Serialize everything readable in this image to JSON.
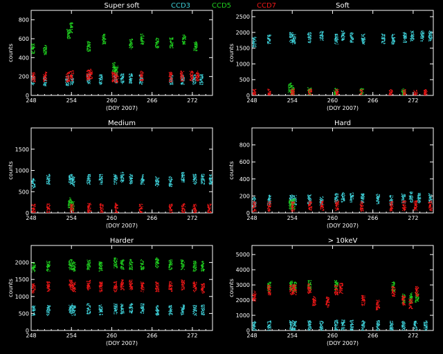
{
  "legend": [
    {
      "label": "CCD3",
      "color": "#3fd0d8"
    },
    {
      "label": "CCD5",
      "color": "#20d020"
    },
    {
      "label": "CCD7",
      "color": "#f01818"
    }
  ],
  "chart_data": [
    {
      "type": "scatter",
      "title": "Super soft",
      "xlabel": "(DOY 2007)",
      "ylabel": "counts",
      "xlim": [
        248,
        275
      ],
      "ylim": [
        0,
        900
      ],
      "xticks": [
        248,
        254,
        260,
        266,
        272
      ],
      "yticks": [
        0,
        200,
        400,
        600,
        800
      ],
      "series": [
        {
          "ccd": "CCD3",
          "values": [
            [
              248.2,
              170
            ],
            [
              250,
              160
            ],
            [
              253.3,
              160
            ],
            [
              254,
              170
            ],
            [
              256.5,
              180
            ],
            [
              258.3,
              170
            ],
            [
              260.5,
              190
            ],
            [
              261.5,
              180
            ],
            [
              262.8,
              180
            ],
            [
              264.3,
              170
            ],
            [
              268.8,
              170
            ],
            [
              270.5,
              170
            ],
            [
              272.2,
              170
            ],
            [
              273.3,
              170
            ]
          ]
        },
        {
          "ccd": "CCD5",
          "values": [
            [
              248.2,
              500
            ],
            [
              250,
              480
            ],
            [
              253.5,
              650
            ],
            [
              253.9,
              720
            ],
            [
              256.5,
              520
            ],
            [
              258.8,
              600
            ],
            [
              260.3,
              300
            ],
            [
              260.6,
              270
            ],
            [
              262.8,
              550
            ],
            [
              264.5,
              600
            ],
            [
              266.7,
              560
            ],
            [
              268.8,
              560
            ],
            [
              270.7,
              600
            ],
            [
              272.4,
              520
            ]
          ]
        },
        {
          "ccd": "CCD7",
          "values": [
            [
              248.3,
              200
            ],
            [
              250,
              200
            ],
            [
              253.4,
              200
            ],
            [
              254,
              210
            ],
            [
              256.4,
              220
            ],
            [
              256.8,
              230
            ],
            [
              260.2,
              200
            ],
            [
              260.7,
              190
            ],
            [
              264.4,
              210
            ],
            [
              268.7,
              200
            ],
            [
              270.4,
              210
            ],
            [
              271.8,
              210
            ],
            [
              272.7,
              210
            ]
          ]
        }
      ]
    },
    {
      "type": "scatter",
      "title": "Soft",
      "xlabel": "(DOY 2007)",
      "ylabel": "counts",
      "xlim": [
        248,
        275
      ],
      "ylim": [
        0,
        2700
      ],
      "xticks": [
        248,
        254,
        260,
        266,
        272
      ],
      "yticks": [
        0,
        500,
        1000,
        1500,
        2000,
        2500
      ],
      "series": [
        {
          "ccd": "CCD3",
          "values": [
            [
              248.3,
              1700
            ],
            [
              250.5,
              1800
            ],
            [
              253.8,
              1850
            ],
            [
              254.2,
              1800
            ],
            [
              256.5,
              1850
            ],
            [
              258.3,
              1900
            ],
            [
              260.5,
              1800
            ],
            [
              261.5,
              1900
            ],
            [
              262.8,
              1850
            ],
            [
              264.5,
              1800
            ],
            [
              267.5,
              1800
            ],
            [
              269,
              1800
            ],
            [
              270.7,
              1850
            ],
            [
              271.8,
              1900
            ],
            [
              273.3,
              1900
            ],
            [
              274.5,
              1900
            ]
          ]
        },
        {
          "ccd": "CCD5",
          "values": [
            [
              253.6,
              250
            ],
            [
              254,
              180
            ],
            [
              256.5,
              100
            ],
            [
              260.4,
              80
            ],
            [
              264.3,
              80
            ],
            [
              270.5,
              70
            ]
          ]
        },
        {
          "ccd": "CCD7",
          "values": [
            [
              248.3,
              60
            ],
            [
              250.5,
              50
            ],
            [
              254,
              70
            ],
            [
              256.6,
              50
            ],
            [
              260.6,
              40
            ],
            [
              264.2,
              40
            ],
            [
              268.6,
              40
            ],
            [
              270.6,
              40
            ],
            [
              272.3,
              40
            ],
            [
              273.8,
              40
            ]
          ]
        }
      ]
    },
    {
      "type": "scatter",
      "title": "Medium",
      "xlabel": "(DOY 2007)",
      "ylabel": "counts",
      "xlim": [
        248,
        275
      ],
      "ylim": [
        0,
        2000
      ],
      "xticks": [
        248,
        254,
        260,
        266,
        272
      ],
      "yticks": [
        0,
        500,
        1000,
        1500
      ],
      "series": [
        {
          "ccd": "CCD3",
          "values": [
            [
              248.3,
              700
            ],
            [
              250.5,
              800
            ],
            [
              253.8,
              800
            ],
            [
              254.2,
              750
            ],
            [
              256.5,
              800
            ],
            [
              258.3,
              800
            ],
            [
              260.5,
              800
            ],
            [
              261.5,
              850
            ],
            [
              262.8,
              800
            ],
            [
              264.5,
              800
            ],
            [
              266.7,
              750
            ],
            [
              268.7,
              750
            ],
            [
              270.5,
              850
            ],
            [
              272.3,
              800
            ],
            [
              273.5,
              800
            ],
            [
              274.7,
              800
            ]
          ]
        },
        {
          "ccd": "CCD5",
          "values": [
            [
              253.7,
              250
            ],
            [
              254.1,
              180
            ]
          ]
        },
        {
          "ccd": "CCD7",
          "values": [
            [
              248.3,
              100
            ],
            [
              250.5,
              100
            ],
            [
              254,
              100
            ],
            [
              256.6,
              120
            ],
            [
              258.4,
              110
            ],
            [
              260.6,
              120
            ],
            [
              264.3,
              100
            ],
            [
              268.7,
              100
            ],
            [
              270.6,
              110
            ],
            [
              272.3,
              100
            ],
            [
              274.5,
              100
            ]
          ]
        }
      ]
    },
    {
      "type": "scatter",
      "title": "Hard",
      "xlabel": "(DOY 2007)",
      "ylabel": "counts",
      "xlim": [
        248,
        275
      ],
      "ylim": [
        0,
        1000
      ],
      "xticks": [
        248,
        254,
        260,
        266,
        272
      ],
      "yticks": [
        0,
        200,
        400,
        600,
        800
      ],
      "series": [
        {
          "ccd": "CCD3",
          "values": [
            [
              248.3,
              130
            ],
            [
              250.5,
              160
            ],
            [
              253.8,
              160
            ],
            [
              254.3,
              150
            ],
            [
              256.5,
              160
            ],
            [
              258.3,
              150
            ],
            [
              260.5,
              180
            ],
            [
              261.5,
              190
            ],
            [
              262.8,
              190
            ],
            [
              264.4,
              170
            ],
            [
              266.7,
              170
            ],
            [
              268.7,
              150
            ],
            [
              270.5,
              180
            ],
            [
              271.6,
              190
            ],
            [
              272.8,
              180
            ],
            [
              274.5,
              180
            ]
          ]
        },
        {
          "ccd": "CCD5",
          "values": [
            [
              253.7,
              100
            ],
            [
              254.1,
              110
            ]
          ]
        },
        {
          "ccd": "CCD7",
          "values": [
            [
              248.3,
              80
            ],
            [
              250.5,
              80
            ],
            [
              254,
              80
            ],
            [
              256.6,
              90
            ],
            [
              258.4,
              90
            ],
            [
              260.6,
              90
            ],
            [
              264.3,
              80
            ],
            [
              268.7,
              80
            ],
            [
              270.6,
              90
            ],
            [
              272.3,
              90
            ],
            [
              274.5,
              90
            ]
          ]
        }
      ]
    },
    {
      "type": "scatter",
      "title": "Harder",
      "xlabel": "(DOY 2007)",
      "ylabel": "counts",
      "xlim": [
        248,
        275
      ],
      "ylim": [
        0,
        2500
      ],
      "xticks": [
        248,
        254,
        260,
        266,
        272
      ],
      "yticks": [
        0,
        500,
        1000,
        1500,
        2000
      ],
      "series": [
        {
          "ccd": "CCD3",
          "values": [
            [
              248.3,
              600
            ],
            [
              250.5,
              600
            ],
            [
              253.8,
              650
            ],
            [
              254.3,
              600
            ],
            [
              256.5,
              650
            ],
            [
              258.3,
              620
            ],
            [
              260.5,
              650
            ],
            [
              261.5,
              650
            ],
            [
              262.8,
              670
            ],
            [
              264.5,
              650
            ],
            [
              266.7,
              600
            ],
            [
              268.7,
              600
            ],
            [
              270.5,
              620
            ],
            [
              272.3,
              600
            ],
            [
              273.5,
              620
            ]
          ]
        },
        {
          "ccd": "CCD5",
          "values": [
            [
              248.3,
              1850
            ],
            [
              250.5,
              1900
            ],
            [
              253.8,
              1950
            ],
            [
              254.3,
              1900
            ],
            [
              256.5,
              1950
            ],
            [
              258.3,
              1900
            ],
            [
              260.5,
              2000
            ],
            [
              261.5,
              1950
            ],
            [
              262.8,
              1950
            ],
            [
              264.5,
              1950
            ],
            [
              266.7,
              2000
            ],
            [
              268.7,
              1950
            ],
            [
              270.5,
              1950
            ],
            [
              272.3,
              1900
            ],
            [
              273.5,
              1900
            ]
          ]
        },
        {
          "ccd": "CCD7",
          "values": [
            [
              248.3,
              1250
            ],
            [
              250.5,
              1300
            ],
            [
              253.8,
              1350
            ],
            [
              254.3,
              1300
            ],
            [
              256.5,
              1350
            ],
            [
              258.3,
              1300
            ],
            [
              260.5,
              1300
            ],
            [
              261.5,
              1350
            ],
            [
              262.8,
              1350
            ],
            [
              264.5,
              1300
            ],
            [
              266.7,
              1300
            ],
            [
              268.7,
              1300
            ],
            [
              270.5,
              1350
            ],
            [
              272.3,
              1300
            ],
            [
              273.5,
              1250
            ]
          ]
        }
      ]
    },
    {
      "type": "scatter",
      "title": "> 10keV",
      "xlabel": "(DOY 2007)",
      "ylabel": "counts",
      "xlim": [
        248,
        275
      ],
      "ylim": [
        0,
        5600
      ],
      "xticks": [
        248,
        254,
        260,
        266,
        272
      ],
      "yticks": [
        0,
        1000,
        2000,
        3000,
        4000,
        5000
      ],
      "series": [
        {
          "ccd": "CCD3",
          "values": [
            [
              248.3,
              300
            ],
            [
              250.5,
              330
            ],
            [
              253.8,
              350
            ],
            [
              254.3,
              350
            ],
            [
              256.5,
              350
            ],
            [
              258.3,
              350
            ],
            [
              260.5,
              380
            ],
            [
              261.5,
              380
            ],
            [
              262.8,
              380
            ],
            [
              264.5,
              350
            ],
            [
              266.7,
              350
            ],
            [
              268.7,
              350
            ],
            [
              270.5,
              320
            ],
            [
              272.3,
              320
            ],
            [
              273.8,
              320
            ]
          ]
        },
        {
          "ccd": "CCD5",
          "values": [
            [
              250.5,
              2900
            ],
            [
              253.8,
              2950
            ],
            [
              254.3,
              2900
            ],
            [
              256.5,
              3000
            ],
            [
              260.5,
              3000
            ],
            [
              269,
              2900
            ],
            [
              270.5,
              2100
            ],
            [
              271.6,
              2200
            ],
            [
              272.5,
              2200
            ]
          ]
        },
        {
          "ccd": "CCD7",
          "values": [
            [
              248.3,
              2300
            ],
            [
              250.5,
              2700
            ],
            [
              253.8,
              2700
            ],
            [
              254.3,
              2700
            ],
            [
              256.5,
              2800
            ],
            [
              257.2,
              2000
            ],
            [
              259.2,
              1900
            ],
            [
              260.5,
              2700
            ],
            [
              261.2,
              2800
            ],
            [
              264.5,
              2000
            ],
            [
              266.7,
              1700
            ],
            [
              269,
              2600
            ],
            [
              270.5,
              2000
            ],
            [
              271.6,
              1800
            ],
            [
              272.5,
              2600
            ]
          ]
        }
      ]
    }
  ]
}
